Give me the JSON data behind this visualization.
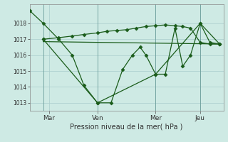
{
  "background_color": "#ceeae4",
  "grid_color": "#aacccc",
  "line_color": "#1a5c1a",
  "marker_color": "#1a5c1a",
  "xlabel": "Pression niveau de la mer( hPa )",
  "ylim": [
    1012.5,
    1019.2
  ],
  "yticks": [
    1013,
    1014,
    1015,
    1016,
    1017,
    1018
  ],
  "xlim": [
    0,
    10.0
  ],
  "day_labels": [
    "Mar",
    "Ven",
    "Mer",
    "Jeu"
  ],
  "day_positions": [
    1.0,
    3.5,
    6.5,
    8.8
  ],
  "vline_positions": [
    0.7,
    3.5,
    6.5,
    8.8
  ],
  "series1_zigzag": {
    "x": [
      0.0,
      0.7,
      1.5,
      2.2,
      2.8,
      3.5,
      4.2,
      4.8,
      5.3,
      5.7,
      6.0,
      6.5,
      7.0,
      7.5,
      7.9,
      8.3,
      8.8,
      9.3,
      9.8
    ],
    "y": [
      1018.8,
      1018.0,
      1017.0,
      1016.0,
      1014.1,
      1013.0,
      1013.0,
      1015.1,
      1016.0,
      1016.5,
      1016.0,
      1014.8,
      1014.8,
      1017.7,
      1015.3,
      1016.0,
      1018.0,
      1016.8,
      1016.7
    ]
  },
  "series2_rising": {
    "x": [
      0.7,
      1.5,
      2.2,
      2.8,
      3.5,
      4.0,
      4.5,
      5.0,
      5.5,
      6.0,
      6.5,
      7.0,
      7.5,
      7.9,
      8.3,
      8.8,
      9.3,
      9.8
    ],
    "y": [
      1017.0,
      1017.1,
      1017.2,
      1017.3,
      1017.4,
      1017.5,
      1017.55,
      1017.6,
      1017.7,
      1017.8,
      1017.85,
      1017.9,
      1017.85,
      1017.8,
      1017.7,
      1016.8,
      1016.7,
      1016.7
    ]
  },
  "series3_flat": {
    "x": [
      0.7,
      9.8
    ],
    "y": [
      1016.85,
      1016.7
    ]
  },
  "series4_sparse": {
    "x": [
      0.7,
      3.5,
      6.5,
      8.8,
      9.8
    ],
    "y": [
      1017.0,
      1013.0,
      1014.8,
      1018.0,
      1016.7
    ]
  }
}
